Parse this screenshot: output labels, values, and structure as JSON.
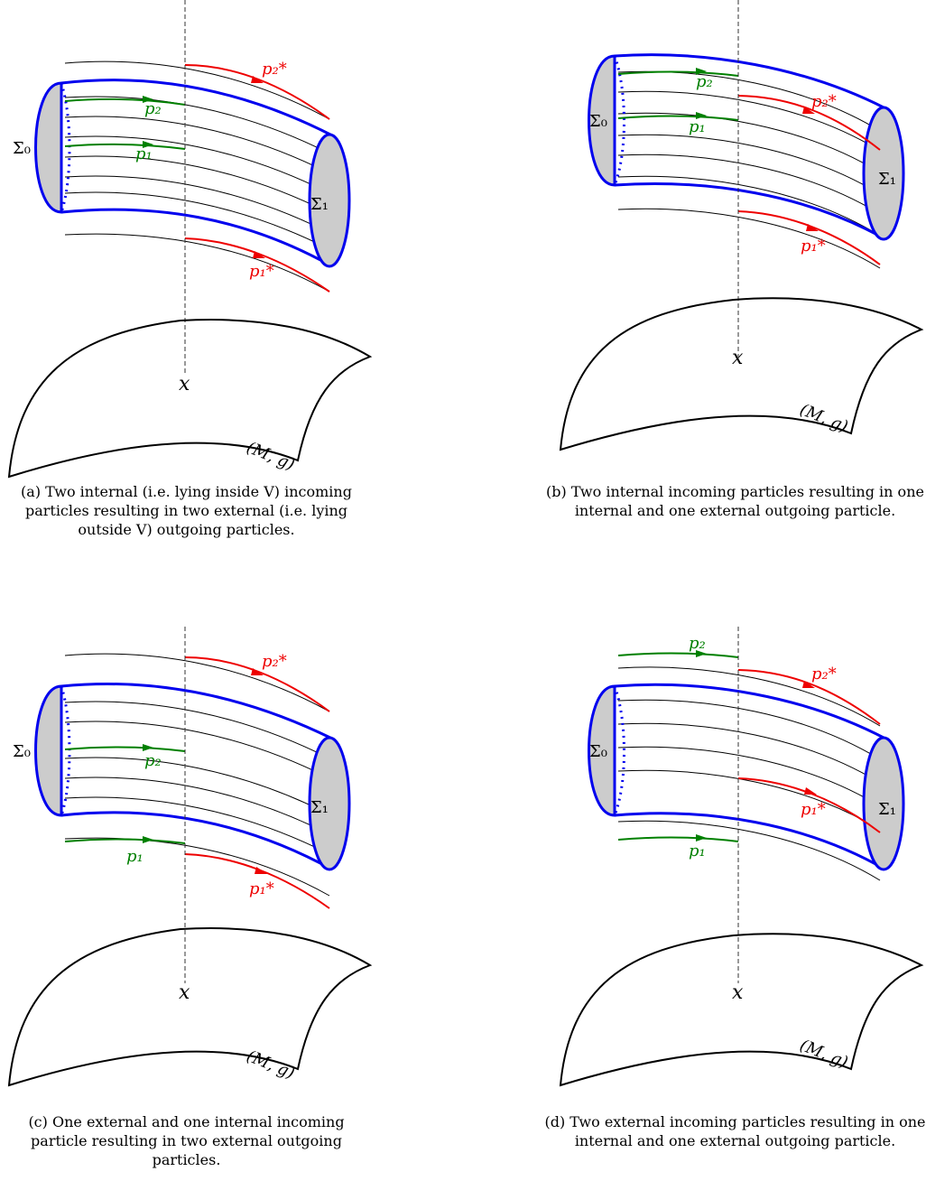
{
  "labels": {
    "sigma0": "Σ₀",
    "sigma1": "Σ₁",
    "p1": "p₁",
    "p2": "p₂",
    "p1star": "p₁*",
    "p2star": "p₂*",
    "x": "x",
    "manifold": "(M, g)"
  },
  "captions": {
    "a": "(a) Two internal (i.e. lying inside V) incoming particles resulting in two external (i.e. lying outside V) outgoing particles.",
    "b": "(b) Two internal incoming particles resulting in one internal and one external outgoing particle.",
    "c": "(c) One external and one internal incoming particle resulting in two external outgoing particles.",
    "d": "(d) Two external incoming particles resulting in one internal and one external outgoing particle."
  },
  "colors": {
    "tube": "#0000ee",
    "incoming": "#008000",
    "outgoing": "#ee0000",
    "worldline": "#000000",
    "cap_fill": "#cccccc"
  }
}
